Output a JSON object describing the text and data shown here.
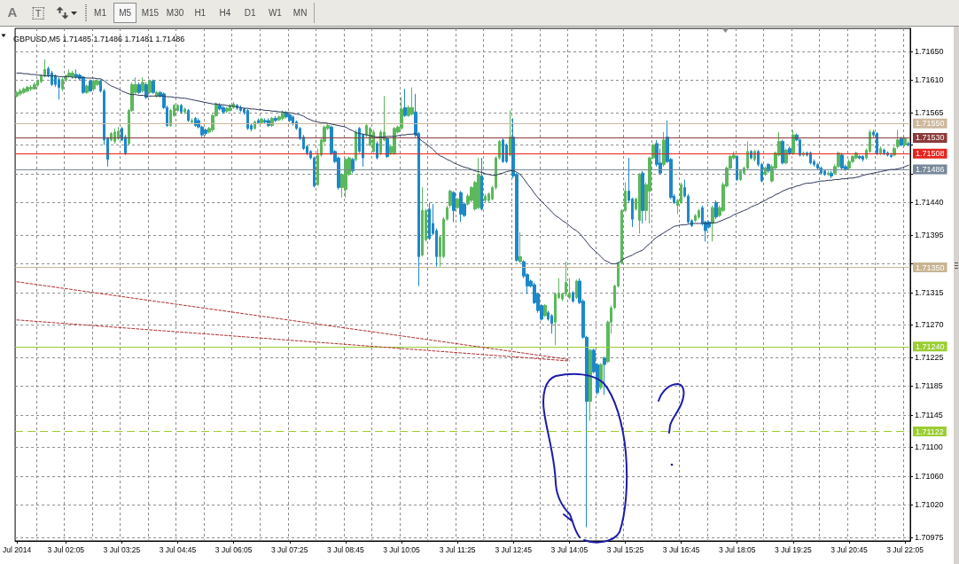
{
  "chart_data": {
    "type": "candlestick",
    "title": "GBPUSD,M5 1.71485 1.71486 1.71481 1.71486",
    "annotations": [
      "A",
      "T",
      "M1",
      "M5",
      "M15",
      "M30",
      "H1",
      "H4",
      "D1",
      "W1",
      "MN"
    ],
    "categories": [
      "Jul 2014",
      null,
      null,
      null,
      null,
      null,
      null,
      null,
      null,
      null,
      null,
      null,
      null,
      null,
      "3 Jul 02:05",
      null,
      null,
      null,
      null,
      null,
      null,
      null,
      null,
      null,
      null,
      null,
      null,
      null,
      null,
      null,
      "3 Jul 03:25",
      null,
      null,
      null,
      null,
      null,
      null,
      null,
      null,
      null,
      null,
      null,
      null,
      null,
      null,
      null,
      "3 Jul 04:45",
      null,
      null,
      null,
      null,
      null,
      null,
      null,
      null,
      null,
      null,
      null,
      null,
      null,
      null,
      null,
      "3 Jul 06:05",
      null,
      null,
      null,
      null,
      null,
      null,
      null,
      null,
      null,
      null,
      null,
      null,
      null,
      null,
      null,
      "3 Jul 07:25",
      null,
      null,
      null,
      null,
      null,
      null,
      null,
      null,
      null,
      null,
      null,
      null,
      null,
      null,
      null,
      "3 Jul 08:45",
      null,
      null,
      null,
      null,
      null,
      null,
      null,
      null,
      null,
      null,
      null,
      null,
      null,
      null,
      null,
      "3 Jul 10:05",
      null,
      null,
      null,
      null,
      null,
      null,
      null,
      null,
      null,
      null,
      null,
      null,
      null,
      null,
      null,
      "3 Jul 11:25",
      null,
      null,
      null,
      null,
      null,
      null,
      null,
      null,
      null,
      null,
      null,
      null,
      null,
      null,
      null,
      "3 Jul 12:45",
      null,
      null,
      null,
      null,
      null,
      null,
      null,
      null,
      null,
      null,
      null,
      null,
      null,
      null,
      null,
      "3 Jul 14:05",
      null,
      null,
      null,
      null,
      null,
      null,
      null,
      null,
      null,
      null,
      null,
      null,
      null,
      null,
      null,
      "3 Jul 15:25",
      null,
      null,
      null,
      null,
      null,
      null,
      null,
      null,
      null,
      null,
      null,
      null,
      null,
      null,
      null,
      "3 Jul 16:45",
      null,
      null,
      null,
      null,
      null,
      null,
      null,
      null,
      null,
      null,
      null,
      null,
      null,
      null,
      null,
      "3 Jul 18:05",
      null,
      null,
      null,
      null,
      null,
      null,
      null,
      null,
      null,
      null,
      null,
      null,
      null,
      null,
      null,
      "3 Jul 19:25",
      null,
      null,
      null,
      null,
      null,
      null,
      null,
      null,
      null,
      null,
      null,
      null,
      null,
      null,
      null,
      "3 Jul 20:45",
      null,
      null,
      null,
      null,
      null,
      null,
      null,
      null,
      null,
      null,
      null,
      null,
      null,
      null,
      null,
      "3 Jul 22:05",
      null
    ],
    "ohlc": [
      [
        1.71588,
        1.71595,
        1.71586,
        1.71593
      ],
      [
        1.71591,
        1.71598,
        1.71588,
        1.71595
      ],
      [
        1.71593,
        1.716,
        1.71591,
        1.71598
      ],
      [
        1.71595,
        1.71602,
        1.71593,
        1.716
      ],
      [
        1.71598,
        1.71603,
        1.71595,
        1.716
      ],
      [
        1.71598,
        1.71607,
        1.71597,
        1.71604
      ],
      [
        1.71603,
        1.71611,
        1.71601,
        1.71609
      ],
      [
        1.71608,
        1.71618,
        1.71606,
        1.71616
      ],
      [
        1.71616,
        1.71639,
        1.71614,
        1.71625
      ],
      [
        1.71626,
        1.71629,
        1.71614,
        1.71616
      ],
      [
        1.7162,
        1.71623,
        1.71602,
        1.71604
      ],
      [
        1.71616,
        1.71618,
        1.71601,
        1.71604
      ],
      [
        1.71611,
        1.71614,
        1.71583,
        1.716
      ],
      [
        1.71598,
        1.71614,
        1.71595,
        1.71611
      ],
      [
        1.7161,
        1.71618,
        1.71608,
        1.71616
      ],
      [
        1.71616,
        1.71625,
        1.71614,
        1.7162
      ],
      [
        1.71615,
        1.71623,
        1.71612,
        1.7162
      ],
      [
        1.71618,
        1.71625,
        1.71612,
        1.71615
      ],
      [
        1.71617,
        1.71619,
        1.7161,
        1.71612
      ],
      [
        1.71614,
        1.71616,
        1.71591,
        1.71593
      ],
      [
        1.71593,
        1.71604,
        1.71591,
        1.71602
      ],
      [
        1.71609,
        1.71611,
        1.71594,
        1.71595
      ],
      [
        1.71598,
        1.71611,
        1.71595,
        1.71609
      ],
      [
        1.71604,
        1.71611,
        1.71602,
        1.71609
      ],
      [
        1.71609,
        1.71611,
        1.71593,
        1.71595
      ],
      [
        1.71595,
        1.71598,
        1.7152,
        1.71527
      ],
      [
        1.71529,
        1.71531,
        1.7149,
        1.715
      ],
      [
        1.71527,
        1.71538,
        1.71525,
        1.71536
      ],
      [
        1.71525,
        1.71543,
        1.71522,
        1.71538
      ],
      [
        1.71529,
        1.71545,
        1.71527,
        1.71539
      ],
      [
        1.71543,
        1.71545,
        1.71525,
        1.71527
      ],
      [
        1.71531,
        1.71534,
        1.71506,
        1.71509
      ],
      [
        1.71522,
        1.7157,
        1.7152,
        1.71568
      ],
      [
        1.71568,
        1.71607,
        1.71566,
        1.71604
      ],
      [
        1.71593,
        1.71614,
        1.71591,
        1.71604
      ],
      [
        1.71604,
        1.71607,
        1.71591,
        1.71593
      ],
      [
        1.71595,
        1.71614,
        1.71593,
        1.71607
      ],
      [
        1.71604,
        1.71607,
        1.71584,
        1.71586
      ],
      [
        1.71593,
        1.71611,
        1.71591,
        1.71609
      ],
      [
        1.71609,
        1.71611,
        1.71591,
        1.71593
      ],
      [
        1.71588,
        1.71595,
        1.71586,
        1.71593
      ],
      [
        1.71593,
        1.71595,
        1.71586,
        1.71588
      ],
      [
        1.71591,
        1.71593,
        1.7157,
        1.71572
      ],
      [
        1.71572,
        1.71575,
        1.71545,
        1.71547
      ],
      [
        1.71547,
        1.7157,
        1.71545,
        1.71568
      ],
      [
        1.71561,
        1.71577,
        1.71559,
        1.71575
      ],
      [
        1.71568,
        1.71577,
        1.71566,
        1.71575
      ],
      [
        1.71575,
        1.71577,
        1.71563,
        1.71566
      ],
      [
        1.71566,
        1.71572,
        1.71563,
        1.7157
      ],
      [
        1.71568,
        1.7157,
        1.71552,
        1.71554
      ],
      [
        1.71552,
        1.71557,
        1.7155,
        1.71554
      ],
      [
        1.71557,
        1.71559,
        1.71545,
        1.71547
      ],
      [
        1.71554,
        1.71557,
        1.71543,
        1.71545
      ],
      [
        1.71545,
        1.71547,
        1.71531,
        1.71534
      ],
      [
        1.71541,
        1.71543,
        1.71533,
        1.71536
      ],
      [
        1.71538,
        1.71545,
        1.71536,
        1.71543
      ],
      [
        1.71541,
        1.71563,
        1.71538,
        1.71561
      ],
      [
        1.71561,
        1.71579,
        1.71559,
        1.71577
      ],
      [
        1.71575,
        1.71578,
        1.71568,
        1.7157
      ],
      [
        1.71572,
        1.71575,
        1.71563,
        1.71566
      ],
      [
        1.71567,
        1.71573,
        1.71564,
        1.71571
      ],
      [
        1.71568,
        1.71577,
        1.71566,
        1.71575
      ],
      [
        1.71572,
        1.7158,
        1.7157,
        1.71577
      ],
      [
        1.71575,
        1.71577,
        1.71569,
        1.71571
      ],
      [
        1.71572,
        1.71575,
        1.71566,
        1.71568
      ],
      [
        1.7157,
        1.71572,
        1.71562,
        1.71565
      ],
      [
        1.71568,
        1.7157,
        1.71541,
        1.71543
      ],
      [
        1.71547,
        1.7155,
        1.71539,
        1.71542
      ],
      [
        1.71543,
        1.71554,
        1.71541,
        1.71552
      ],
      [
        1.71554,
        1.71557,
        1.71549,
        1.71551
      ],
      [
        1.71551,
        1.71558,
        1.71549,
        1.71556
      ],
      [
        1.71554,
        1.71557,
        1.7155,
        1.71552
      ],
      [
        1.71554,
        1.71557,
        1.71545,
        1.71547
      ],
      [
        1.71547,
        1.71559,
        1.71545,
        1.71557
      ],
      [
        1.71557,
        1.7156,
        1.71552,
        1.71554
      ],
      [
        1.71555,
        1.71561,
        1.71553,
        1.71559
      ],
      [
        1.71557,
        1.71568,
        1.71554,
        1.71565
      ],
      [
        1.71565,
        1.71567,
        1.71557,
        1.71559
      ],
      [
        1.71562,
        1.71564,
        1.71552,
        1.71554
      ],
      [
        1.71559,
        1.71561,
        1.71547,
        1.7155
      ],
      [
        1.71552,
        1.71554,
        1.71541,
        1.71543
      ],
      [
        1.71543,
        1.71545,
        1.71527,
        1.71529
      ],
      [
        1.71531,
        1.71534,
        1.71513,
        1.71515
      ],
      [
        1.71518,
        1.7152,
        1.71506,
        1.71509
      ],
      [
        1.71511,
        1.71513,
        1.715,
        1.71502
      ],
      [
        1.71502,
        1.71504,
        1.71461,
        1.71463
      ],
      [
        1.71465,
        1.71515,
        1.71463,
        1.71506
      ],
      [
        1.71506,
        1.71529,
        1.71504,
        1.71527
      ],
      [
        1.71525,
        1.71547,
        1.71522,
        1.71545
      ],
      [
        1.71543,
        1.7155,
        1.71541,
        1.71547
      ],
      [
        1.71545,
        1.71547,
        1.71506,
        1.71509
      ],
      [
        1.71511,
        1.71513,
        1.71495,
        1.71497
      ],
      [
        1.71502,
        1.71504,
        1.71458,
        1.71461
      ],
      [
        1.71461,
        1.71481,
        1.71447,
        1.71479
      ],
      [
        1.71458,
        1.71502,
        1.71447,
        1.715
      ],
      [
        1.71479,
        1.71504,
        1.71477,
        1.71502
      ],
      [
        1.715,
        1.71502,
        1.71481,
        1.71484
      ],
      [
        1.715,
        1.71541,
        1.71497,
        1.71538
      ],
      [
        1.71543,
        1.71545,
        1.71509,
        1.71511
      ],
      [
        1.71534,
        1.71536,
        1.7149,
        1.71502
      ],
      [
        1.71534,
        1.7155,
        1.71531,
        1.71547
      ],
      [
        1.7152,
        1.71545,
        1.71518,
        1.71543
      ],
      [
        1.71511,
        1.71541,
        1.71509,
        1.71538
      ],
      [
        1.71522,
        1.71525,
        1.715,
        1.71502
      ],
      [
        1.71509,
        1.71541,
        1.71506,
        1.71538
      ],
      [
        1.71527,
        1.71588,
        1.71525,
        1.71538
      ],
      [
        1.71529,
        1.71531,
        1.71502,
        1.71504
      ],
      [
        1.71509,
        1.7152,
        1.71506,
        1.71518
      ],
      [
        1.71509,
        1.71545,
        1.71506,
        1.71543
      ],
      [
        1.71538,
        1.71547,
        1.71536,
        1.71545
      ],
      [
        1.71543,
        1.71586,
        1.71541,
        1.7157
      ],
      [
        1.71572,
        1.71598,
        1.71559,
        1.71561
      ],
      [
        1.71561,
        1.71575,
        1.71559,
        1.71572
      ],
      [
        1.71563,
        1.716,
        1.71561,
        1.71572
      ],
      [
        1.71566,
        1.71591,
        1.71531,
        1.71534
      ],
      [
        1.71536,
        1.71538,
        1.71324,
        1.71365
      ],
      [
        1.71367,
        1.71461,
        1.71365,
        1.71429
      ],
      [
        1.71388,
        1.71431,
        1.71386,
        1.71429
      ],
      [
        1.71431,
        1.7144,
        1.71388,
        1.7139
      ],
      [
        1.71411,
        1.71438,
        1.71395,
        1.71397
      ],
      [
        1.71401,
        1.71404,
        1.71351,
        1.71365
      ],
      [
        1.71365,
        1.71395,
        1.71351,
        1.71392
      ],
      [
        1.71365,
        1.7142,
        1.71363,
        1.71417
      ],
      [
        1.71417,
        1.71436,
        1.71415,
        1.71433
      ],
      [
        1.71436,
        1.71458,
        1.71433,
        1.71456
      ],
      [
        1.71454,
        1.71456,
        1.71413,
        1.71429
      ],
      [
        1.71433,
        1.71447,
        1.71431,
        1.71445
      ],
      [
        1.71454,
        1.71456,
        1.71413,
        1.71424
      ],
      [
        1.71438,
        1.7144,
        1.7142,
        1.71422
      ],
      [
        1.71438,
        1.71452,
        1.71436,
        1.71449
      ],
      [
        1.71443,
        1.71463,
        1.7144,
        1.71461
      ],
      [
        1.71431,
        1.7147,
        1.71429,
        1.71468
      ],
      [
        1.71433,
        1.71502,
        1.71431,
        1.71479
      ],
      [
        1.71477,
        1.71502,
        1.71429,
        1.71431
      ],
      [
        1.71443,
        1.71452,
        1.7144,
        1.71449
      ],
      [
        1.71443,
        1.71454,
        1.7144,
        1.71452
      ],
      [
        1.71445,
        1.71463,
        1.71443,
        1.71461
      ],
      [
        1.71461,
        1.71504,
        1.71458,
        1.71502
      ],
      [
        1.71502,
        1.71527,
        1.715,
        1.71525
      ],
      [
        1.71527,
        1.71529,
        1.71495,
        1.71497
      ],
      [
        1.7152,
        1.71522,
        1.71495,
        1.71497
      ],
      [
        1.71506,
        1.71568,
        1.71504,
        1.71531
      ],
      [
        1.71531,
        1.71557,
        1.71474,
        1.71477
      ],
      [
        1.71479,
        1.71481,
        1.71358,
        1.7136
      ],
      [
        1.71358,
        1.71399,
        1.71356,
        1.71365
      ],
      [
        1.71358,
        1.7136,
        1.71335,
        1.71338
      ],
      [
        1.7134,
        1.71342,
        1.71313,
        1.71324
      ],
      [
        1.71331,
        1.71333,
        1.71322,
        1.71324
      ],
      [
        1.71326,
        1.71329,
        1.71299,
        1.71301
      ],
      [
        1.71313,
        1.71315,
        1.71287,
        1.7129
      ],
      [
        1.71297,
        1.71299,
        1.71276,
        1.71278
      ],
      [
        1.71283,
        1.71299,
        1.71281,
        1.71297
      ],
      [
        1.71287,
        1.7129,
        1.71276,
        1.71278
      ],
      [
        1.71283,
        1.71285,
        1.71258,
        1.71272
      ],
      [
        1.71274,
        1.71315,
        1.71242,
        1.71313
      ],
      [
        1.71308,
        1.71335,
        1.71306,
        1.71313
      ],
      [
        1.71306,
        1.71315,
        1.71303,
        1.71313
      ],
      [
        1.71313,
        1.71358,
        1.7131,
        1.71329
      ],
      [
        1.71308,
        1.71335,
        1.71306,
        1.71313
      ],
      [
        1.71315,
        1.71317,
        1.71301,
        1.71303
      ],
      [
        1.71308,
        1.71333,
        1.71306,
        1.71331
      ],
      [
        1.71331,
        1.71335,
        1.71299,
        1.71301
      ],
      [
        1.71303,
        1.71306,
        1.71251,
        1.71253
      ],
      [
        1.71253,
        1.71255,
        1.70989,
        1.71164
      ],
      [
        1.71164,
        1.71237,
        1.71137,
        1.71235
      ],
      [
        1.71235,
        1.71237,
        1.71203,
        1.71205
      ],
      [
        1.71215,
        1.71217,
        1.71173,
        1.71176
      ],
      [
        1.71183,
        1.71217,
        1.7118,
        1.71215
      ],
      [
        1.71224,
        1.71226,
        1.71173,
        1.71215
      ],
      [
        1.71219,
        1.71276,
        1.71217,
        1.71274
      ],
      [
        1.71274,
        1.71297,
        1.71258,
        1.71294
      ],
      [
        1.71294,
        1.71326,
        1.71292,
        1.71324
      ],
      [
        1.71324,
        1.71358,
        1.71322,
        1.71356
      ],
      [
        1.71356,
        1.71431,
        1.71354,
        1.71429
      ],
      [
        1.71429,
        1.71468,
        1.71427,
        1.71456
      ],
      [
        1.71456,
        1.71502,
        1.7144,
        1.71443
      ],
      [
        1.71445,
        1.71447,
        1.71406,
        1.71417
      ],
      [
        1.71431,
        1.71447,
        1.71429,
        1.71445
      ],
      [
        1.71415,
        1.71481,
        1.71397,
        1.71479
      ],
      [
        1.71481,
        1.71484,
        1.71411,
        1.71429
      ],
      [
        1.71429,
        1.71468,
        1.71415,
        1.71465
      ],
      [
        1.71456,
        1.71504,
        1.71411,
        1.71502
      ],
      [
        1.71502,
        1.71522,
        1.715,
        1.7152
      ],
      [
        1.71522,
        1.71527,
        1.7149,
        1.71493
      ],
      [
        1.71495,
        1.71515,
        1.71479,
        1.71481
      ],
      [
        1.71493,
        1.71538,
        1.7149,
        1.71527
      ],
      [
        1.71531,
        1.71554,
        1.71495,
        1.71497
      ],
      [
        1.715,
        1.71502,
        1.71445,
        1.71447
      ],
      [
        1.71449,
        1.71452,
        1.71438,
        1.7144
      ],
      [
        1.71436,
        1.71445,
        1.71424,
        1.71443
      ],
      [
        1.7144,
        1.71468,
        1.71438,
        1.71465
      ],
      [
        1.71461,
        1.71472,
        1.71447,
        1.71449
      ],
      [
        1.71449,
        1.71452,
        1.71411,
        1.71413
      ],
      [
        1.71415,
        1.71417,
        1.71406,
        1.71408
      ],
      [
        1.71415,
        1.71424,
        1.71413,
        1.71422
      ],
      [
        1.7142,
        1.71431,
        1.71417,
        1.71429
      ],
      [
        1.71433,
        1.71436,
        1.71408,
        1.71411
      ],
      [
        1.71413,
        1.71415,
        1.71386,
        1.71401
      ],
      [
        1.71413,
        1.71415,
        1.71404,
        1.71406
      ],
      [
        1.71411,
        1.71436,
        1.71386,
        1.71433
      ],
      [
        1.7144,
        1.71443,
        1.71417,
        1.7142
      ],
      [
        1.71422,
        1.71436,
        1.7142,
        1.71433
      ],
      [
        1.71429,
        1.71468,
        1.71427,
        1.71465
      ],
      [
        1.71463,
        1.7149,
        1.71461,
        1.71488
      ],
      [
        1.71488,
        1.71506,
        1.71486,
        1.71504
      ],
      [
        1.71502,
        1.71511,
        1.715,
        1.71506
      ],
      [
        1.71504,
        1.71506,
        1.7147,
        1.71472
      ],
      [
        1.71472,
        1.71486,
        1.7147,
        1.71484
      ],
      [
        1.71481,
        1.7149,
        1.71479,
        1.71488
      ],
      [
        1.71488,
        1.71525,
        1.71486,
        1.71511
      ],
      [
        1.71511,
        1.71513,
        1.715,
        1.71502
      ],
      [
        1.715,
        1.71513,
        1.71497,
        1.71511
      ],
      [
        1.71511,
        1.71513,
        1.7149,
        1.71493
      ],
      [
        1.71493,
        1.71495,
        1.71468,
        1.7147
      ],
      [
        1.71479,
        1.7149,
        1.71477,
        1.71488
      ],
      [
        1.71493,
        1.71495,
        1.71481,
        1.71484
      ],
      [
        1.7147,
        1.71493,
        1.71468,
        1.7149
      ],
      [
        1.71488,
        1.71511,
        1.71486,
        1.71509
      ],
      [
        1.71506,
        1.71538,
        1.71504,
        1.71525
      ],
      [
        1.71525,
        1.71527,
        1.71493,
        1.71495
      ],
      [
        1.71495,
        1.71515,
        1.71493,
        1.71513
      ],
      [
        1.71515,
        1.71518,
        1.71506,
        1.71509
      ],
      [
        1.71509,
        1.71541,
        1.71506,
        1.71534
      ],
      [
        1.71534,
        1.71536,
        1.71525,
        1.71527
      ],
      [
        1.71527,
        1.71529,
        1.71504,
        1.71506
      ],
      [
        1.71506,
        1.71511,
        1.71504,
        1.71509
      ],
      [
        1.71509,
        1.71511,
        1.71504,
        1.71506
      ],
      [
        1.71509,
        1.71511,
        1.71493,
        1.71495
      ],
      [
        1.71497,
        1.715,
        1.7149,
        1.71493
      ],
      [
        1.71493,
        1.71495,
        1.71486,
        1.71488
      ],
      [
        1.71488,
        1.7149,
        1.71479,
        1.71481
      ],
      [
        1.71484,
        1.71486,
        1.71477,
        1.71479
      ],
      [
        1.71479,
        1.71484,
        1.71477,
        1.71481
      ],
      [
        1.71481,
        1.71484,
        1.71474,
        1.71477
      ],
      [
        1.71481,
        1.71493,
        1.71479,
        1.7149
      ],
      [
        1.7149,
        1.71511,
        1.71488,
        1.71509
      ],
      [
        1.71506,
        1.71509,
        1.71486,
        1.71488
      ],
      [
        1.7149,
        1.71493,
        1.71484,
        1.71486
      ],
      [
        1.71488,
        1.715,
        1.71486,
        1.71497
      ],
      [
        1.71497,
        1.71506,
        1.71495,
        1.71504
      ],
      [
        1.71502,
        1.71511,
        1.715,
        1.71509
      ],
      [
        1.71504,
        1.71506,
        1.715,
        1.71502
      ],
      [
        1.71504,
        1.71506,
        1.71497,
        1.715
      ],
      [
        1.71502,
        1.71515,
        1.715,
        1.71513
      ],
      [
        1.71511,
        1.71541,
        1.71509,
        1.71538
      ],
      [
        1.71538,
        1.71541,
        1.71531,
        1.71534
      ],
      [
        1.71536,
        1.71538,
        1.71506,
        1.71509
      ],
      [
        1.71509,
        1.71518,
        1.71506,
        1.71515
      ],
      [
        1.71513,
        1.71515,
        1.71506,
        1.71509
      ],
      [
        1.71509,
        1.71511,
        1.71504,
        1.71506
      ],
      [
        1.71506,
        1.71509,
        1.71502,
        1.71504
      ],
      [
        1.71506,
        1.71518,
        1.71504,
        1.71515
      ],
      [
        1.71518,
        1.71541,
        1.71515,
        1.71527
      ],
      [
        1.71529,
        1.71531,
        1.71518,
        1.7152
      ],
      [
        1.7152,
        1.71531,
        1.71518,
        1.71529
      ],
      [
        1.71522,
        1.71525,
        1.71518,
        1.7152
      ]
    ],
    "colors": [
      "#5cb85c",
      "#5cb85c",
      "#5cb85c",
      "#5cb85c",
      "#5cb85c",
      "#5cb85c",
      "#5cb85c",
      "#5cb85c",
      "#5cb85c",
      "#1e88c8",
      "#1e88c8",
      "#1e88c8",
      "#1e88c8",
      "#5cb85c",
      "#5cb85c",
      "#5cb85c",
      "#5cb85c",
      "#1e88c8",
      "#1e88c8",
      "#1e88c8",
      "#5cb85c",
      "#1e88c8",
      "#5cb85c",
      "#5cb85c",
      "#1e88c8",
      "#1e88c8",
      "#1e88c8",
      "#5cb85c",
      "#5cb85c",
      "#5cb85c",
      "#1e88c8",
      "#1e88c8",
      "#5cb85c",
      "#5cb85c",
      "#5cb85c",
      "#1e88c8",
      "#5cb85c",
      "#1e88c8",
      "#5cb85c",
      "#1e88c8",
      "#5cb85c",
      "#1e88c8",
      "#1e88c8",
      "#1e88c8",
      "#5cb85c",
      "#5cb85c",
      "#5cb85c",
      "#1e88c8",
      "#5cb85c",
      "#1e88c8",
      "#5cb85c",
      "#1e88c8",
      "#1e88c8",
      "#1e88c8",
      "#1e88c8",
      "#5cb85c",
      "#5cb85c",
      "#5cb85c",
      "#1e88c8",
      "#1e88c8",
      "#5cb85c",
      "#5cb85c",
      "#5cb85c",
      "#1e88c8",
      "#1e88c8",
      "#1e88c8",
      "#1e88c8",
      "#1e88c8",
      "#5cb85c",
      "#1e88c8",
      "#5cb85c",
      "#1e88c8",
      "#1e88c8",
      "#5cb85c",
      "#1e88c8",
      "#5cb85c",
      "#5cb85c",
      "#1e88c8",
      "#1e88c8",
      "#1e88c8",
      "#1e88c8",
      "#1e88c8",
      "#1e88c8",
      "#1e88c8",
      "#1e88c8",
      "#1e88c8",
      "#5cb85c",
      "#5cb85c",
      "#5cb85c",
      "#5cb85c",
      "#1e88c8",
      "#1e88c8",
      "#1e88c8",
      "#5cb85c",
      "#5cb85c",
      "#5cb85c",
      "#1e88c8",
      "#5cb85c",
      "#1e88c8",
      "#1e88c8",
      "#5cb85c",
      "#5cb85c",
      "#5cb85c",
      "#1e88c8",
      "#5cb85c",
      "#5cb85c",
      "#1e88c8",
      "#5cb85c",
      "#5cb85c",
      "#5cb85c",
      "#5cb85c",
      "#1e88c8",
      "#5cb85c",
      "#5cb85c",
      "#1e88c8",
      "#1e88c8",
      "#5cb85c",
      "#5cb85c",
      "#1e88c8",
      "#1e88c8",
      "#1e88c8",
      "#5cb85c",
      "#5cb85c",
      "#5cb85c",
      "#5cb85c",
      "#1e88c8",
      "#5cb85c",
      "#1e88c8",
      "#1e88c8",
      "#5cb85c",
      "#5cb85c",
      "#5cb85c",
      "#5cb85c",
      "#1e88c8",
      "#5cb85c",
      "#5cb85c",
      "#5cb85c",
      "#5cb85c",
      "#5cb85c",
      "#1e88c8",
      "#1e88c8",
      "#5cb85c",
      "#1e88c8",
      "#1e88c8",
      "#5cb85c",
      "#1e88c8",
      "#1e88c8",
      "#1e88c8",
      "#1e88c8",
      "#1e88c8",
      "#1e88c8",
      "#5cb85c",
      "#1e88c8",
      "#1e88c8",
      "#5cb85c",
      "#5cb85c",
      "#5cb85c",
      "#5cb85c",
      "#5cb85c",
      "#1e88c8",
      "#5cb85c",
      "#1e88c8",
      "#1e88c8",
      "#1e88c8",
      "#5cb85c",
      "#1e88c8",
      "#1e88c8",
      "#5cb85c",
      "#1e88c8",
      "#5cb85c",
      "#5cb85c",
      "#5cb85c",
      "#5cb85c",
      "#5cb85c",
      "#5cb85c",
      "#1e88c8",
      "#1e88c8",
      "#5cb85c",
      "#5cb85c",
      "#1e88c8",
      "#5cb85c",
      "#5cb85c",
      "#5cb85c",
      "#1e88c8",
      "#1e88c8",
      "#5cb85c",
      "#1e88c8",
      "#1e88c8",
      "#1e88c8",
      "#5cb85c",
      "#5cb85c",
      "#1e88c8",
      "#1e88c8",
      "#1e88c8",
      "#5cb85c",
      "#5cb85c",
      "#1e88c8",
      "#1e88c8",
      "#1e88c8",
      "#5cb85c",
      "#1e88c8",
      "#5cb85c",
      "#5cb85c",
      "#5cb85c",
      "#5cb85c",
      "#5cb85c",
      "#1e88c8",
      "#5cb85c",
      "#5cb85c",
      "#5cb85c",
      "#1e88c8",
      "#5cb85c",
      "#1e88c8",
      "#1e88c8",
      "#5cb85c",
      "#1e88c8",
      "#5cb85c",
      "#5cb85c",
      "#5cb85c",
      "#1e88c8",
      "#5cb85c",
      "#1e88c8",
      "#5cb85c",
      "#1e88c8",
      "#1e88c8",
      "#5cb85c",
      "#1e88c8",
      "#1e88c8",
      "#1e88c8",
      "#1e88c8",
      "#1e88c8",
      "#1e88c8",
      "#5cb85c",
      "#1e88c8",
      "#5cb85c",
      "#5cb85c",
      "#1e88c8",
      "#1e88c8",
      "#5cb85c",
      "#5cb85c",
      "#5cb85c",
      "#1e88c8",
      "#1e88c8",
      "#5cb85c",
      "#5cb85c",
      "#1e88c8",
      "#1e88c8",
      "#5cb85c",
      "#1e88c8",
      "#1e88c8",
      "#1e88c8",
      "#5cb85c",
      "#5cb85c",
      "#1e88c8",
      "#5cb85c",
      "#1e88c8"
    ],
    "series": [
      {
        "type": "line",
        "color": "#2b3658",
        "values": [
          1.7162,
          1.7162,
          1.71619,
          1.71619,
          1.71618,
          1.71618,
          1.71617,
          1.71617,
          1.71616,
          1.71616,
          1.71616,
          1.71616,
          1.71615,
          1.71615,
          1.71615,
          1.71615,
          1.71614,
          1.71614,
          1.71614,
          1.71614,
          1.71613,
          1.71613,
          1.71613,
          1.71612,
          1.71612,
          1.71609,
          1.71605,
          1.71602,
          1.716,
          1.71598,
          1.71595,
          1.71593,
          1.71591,
          1.7159,
          1.7159,
          1.71589,
          1.71589,
          1.71588,
          1.71588,
          1.71588,
          1.71588,
          1.71588,
          1.71588,
          1.71587,
          1.71587,
          1.71586,
          1.71586,
          1.71585,
          1.71585,
          1.71584,
          1.71583,
          1.71582,
          1.71581,
          1.7158,
          1.71579,
          1.71578,
          1.71577,
          1.71577,
          1.71576,
          1.71576,
          1.71575,
          1.71574,
          1.71574,
          1.71573,
          1.71572,
          1.71571,
          1.71571,
          1.7157,
          1.7157,
          1.71569,
          1.71569,
          1.71568,
          1.71568,
          1.71567,
          1.71567,
          1.71566,
          1.71566,
          1.71565,
          1.71565,
          1.71564,
          1.71563,
          1.71562,
          1.7156,
          1.71557,
          1.71555,
          1.71553,
          1.71552,
          1.71551,
          1.71551,
          1.7155,
          1.71549,
          1.71548,
          1.71547,
          1.71546,
          1.71545,
          1.71542,
          1.7154,
          1.71537,
          1.71536,
          1.71535,
          1.71534,
          1.71533,
          1.71532,
          1.71531,
          1.71531,
          1.71531,
          1.71532,
          1.71532,
          1.71532,
          1.71533,
          1.71534,
          1.71534,
          1.71535,
          1.71535,
          1.71536,
          1.71529,
          1.71525,
          1.71522,
          1.71518,
          1.71514,
          1.71509,
          1.71505,
          1.71503,
          1.715,
          1.71498,
          1.71495,
          1.71493,
          1.71491,
          1.71489,
          1.71488,
          1.71486,
          1.71484,
          1.71483,
          1.71482,
          1.7148,
          1.71479,
          1.71478,
          1.71478,
          1.7148,
          1.71481,
          1.71483,
          1.71484,
          1.71485,
          1.71482,
          1.71479,
          1.71473,
          1.71466,
          1.7146,
          1.71453,
          1.71447,
          1.71442,
          1.71437,
          1.71432,
          1.71427,
          1.71422,
          1.71419,
          1.71415,
          1.71412,
          1.71408,
          1.71404,
          1.71401,
          1.71397,
          1.71391,
          1.71385,
          1.71379,
          1.71374,
          1.7137,
          1.71365,
          1.7136,
          1.71358,
          1.71355,
          1.71355,
          1.71356,
          1.7136,
          1.71363,
          1.71365,
          1.71367,
          1.7137,
          1.71372,
          1.71374,
          1.71379,
          1.71383,
          1.71388,
          1.71392,
          1.71395,
          1.71398,
          1.71401,
          1.71404,
          1.71407,
          1.71408,
          1.71409,
          1.71409,
          1.7141,
          1.71411,
          1.71411,
          1.71411,
          1.71411,
          1.71411,
          1.71411,
          1.71412,
          1.71412,
          1.71414,
          1.71416,
          1.71418,
          1.7142,
          1.71423,
          1.71425,
          1.71427,
          1.71429,
          1.71431,
          1.71434,
          1.71436,
          1.71438,
          1.71441,
          1.71443,
          1.71446,
          1.71448,
          1.71451,
          1.71453,
          1.71456,
          1.71458,
          1.7146,
          1.71461,
          1.71463,
          1.71464,
          1.71466,
          1.71467,
          1.71467,
          1.71468,
          1.71469,
          1.7147,
          1.7147,
          1.71471,
          1.71471,
          1.71472,
          1.71472,
          1.71473,
          1.71473,
          1.71474,
          1.71474,
          1.71475,
          1.71476,
          1.71478,
          1.71479,
          1.7148,
          1.71481,
          1.71482,
          1.71483,
          1.71484,
          1.71485,
          1.71486,
          1.71486,
          1.71487,
          1.71488,
          1.7149,
          1.71492
        ]
      },
      {
        "type": "line",
        "color": "#b03030",
        "line_style": "dashed",
        "x": [
          "Jul 2014",
          "3 Jul 14:05"
        ],
        "values": [
          1.7133,
          1.71222
        ]
      },
      {
        "type": "line",
        "color": "#b03030",
        "line_style": "dashed",
        "x": [
          "Jul 2014",
          "3 Jul 14:05"
        ],
        "values": [
          1.71277,
          1.7122
        ]
      }
    ],
    "marker": "none",
    "ylim": [
      1.7097,
      1.71682
    ],
    "yticks": [
      {
        "value": 1.7165,
        "label": "1.71650"
      },
      {
        "value": 1.7161,
        "label": "1.71610"
      },
      1.71565,
      {
        "value": 1.7152,
        "label": null
      },
      {
        "value": 1.7148,
        "label": null
      },
      {
        "value": 1.7144,
        "label": "1.71440"
      },
      1.71395,
      {
        "value": 1.71355,
        "label": null
      },
      1.71315,
      {
        "value": 1.7127,
        "label": "1.71270"
      },
      1.71225,
      1.71185,
      1.71145,
      {
        "value": 1.711,
        "label": "1.71100"
      },
      {
        "value": 1.7106,
        "label": "1.71060"
      },
      {
        "value": 1.7102,
        "label": "1.71020"
      },
      1.70975
    ],
    "grid": true,
    "ref_lines": [
      {
        "axis": "y",
        "value": 1.7155,
        "label": "1.71550",
        "color": "#cdb89e"
      },
      {
        "axis": "y",
        "value": 1.7153,
        "label": "1.71530",
        "color": "#8b3a3a"
      },
      {
        "axis": "y",
        "value": 1.71508,
        "label": "1.71508",
        "color": "#e8231e"
      },
      {
        "axis": "y",
        "value": 1.71486,
        "label": "1.71486",
        "color": "#778899"
      },
      {
        "axis": "y",
        "value": 1.7135,
        "label": "1.71350",
        "color": "#c8b493"
      },
      {
        "axis": "y",
        "value": 1.7124,
        "label": "1.71240",
        "color": "#9acd32"
      },
      {
        "axis": "y",
        "value": 1.71122,
        "label": "1.71122",
        "color": "#9acd32",
        "line_style": "dashed"
      }
    ]
  }
}
